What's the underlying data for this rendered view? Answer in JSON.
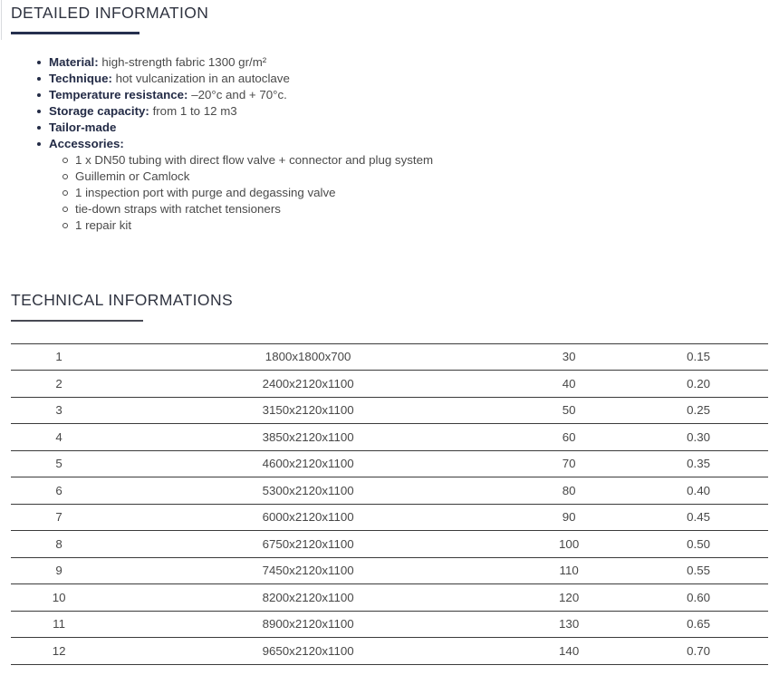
{
  "colors": {
    "heading_text": "#2f3340",
    "accent_underline": "#26304f",
    "label_text": "#232b46",
    "body_text": "#4a4a4a",
    "table_rule": "#3b3b3b"
  },
  "detailed": {
    "title": "DETAILED INFORMATION",
    "items": [
      {
        "label": "Material:",
        "text": "high-strength fabric 1300 gr/m²"
      },
      {
        "label": "Technique:",
        "text": "hot vulcanization in an autoclave"
      },
      {
        "label": "Temperature resistance:",
        "text": "–20°c and + 70°c."
      },
      {
        "label": "Storage capacity:",
        "text": "from 1 to 12 m3"
      },
      {
        "label": "Tailor-made",
        "text": ""
      },
      {
        "label": "Accessories:",
        "text": ""
      }
    ],
    "accessories": [
      "1 x DN50 tubing with direct flow valve + connector and plug system",
      "Guillemin or Camlock",
      "1 inspection port with purge and degassing valve",
      "tie-down straps with ratchet tensioners",
      "1 repair kit"
    ]
  },
  "technical": {
    "title": "TECHNICAL INFORMATIONS",
    "rows": [
      [
        "1",
        "1800x1800x700",
        "30",
        "0.15"
      ],
      [
        "2",
        "2400x2120x1100",
        "40",
        "0.20"
      ],
      [
        "3",
        "3150x2120x1100",
        "50",
        "0.25"
      ],
      [
        "4",
        "3850x2120x1100",
        "60",
        "0.30"
      ],
      [
        "5",
        "4600x2120x1100",
        "70",
        "0.35"
      ],
      [
        "6",
        "5300x2120x1100",
        "80",
        "0.40"
      ],
      [
        "7",
        "6000x2120x1100",
        "90",
        "0.45"
      ],
      [
        "8",
        "6750x2120x1100",
        "100",
        "0.50"
      ],
      [
        "9",
        "7450x2120x1100",
        "110",
        "0.55"
      ],
      [
        "10",
        "8200x2120x1100",
        "120",
        "0.60"
      ],
      [
        "11",
        "8900x2120x1100",
        "130",
        "0.65"
      ],
      [
        "12",
        "9650x2120x1100",
        "140",
        "0.70"
      ]
    ]
  }
}
